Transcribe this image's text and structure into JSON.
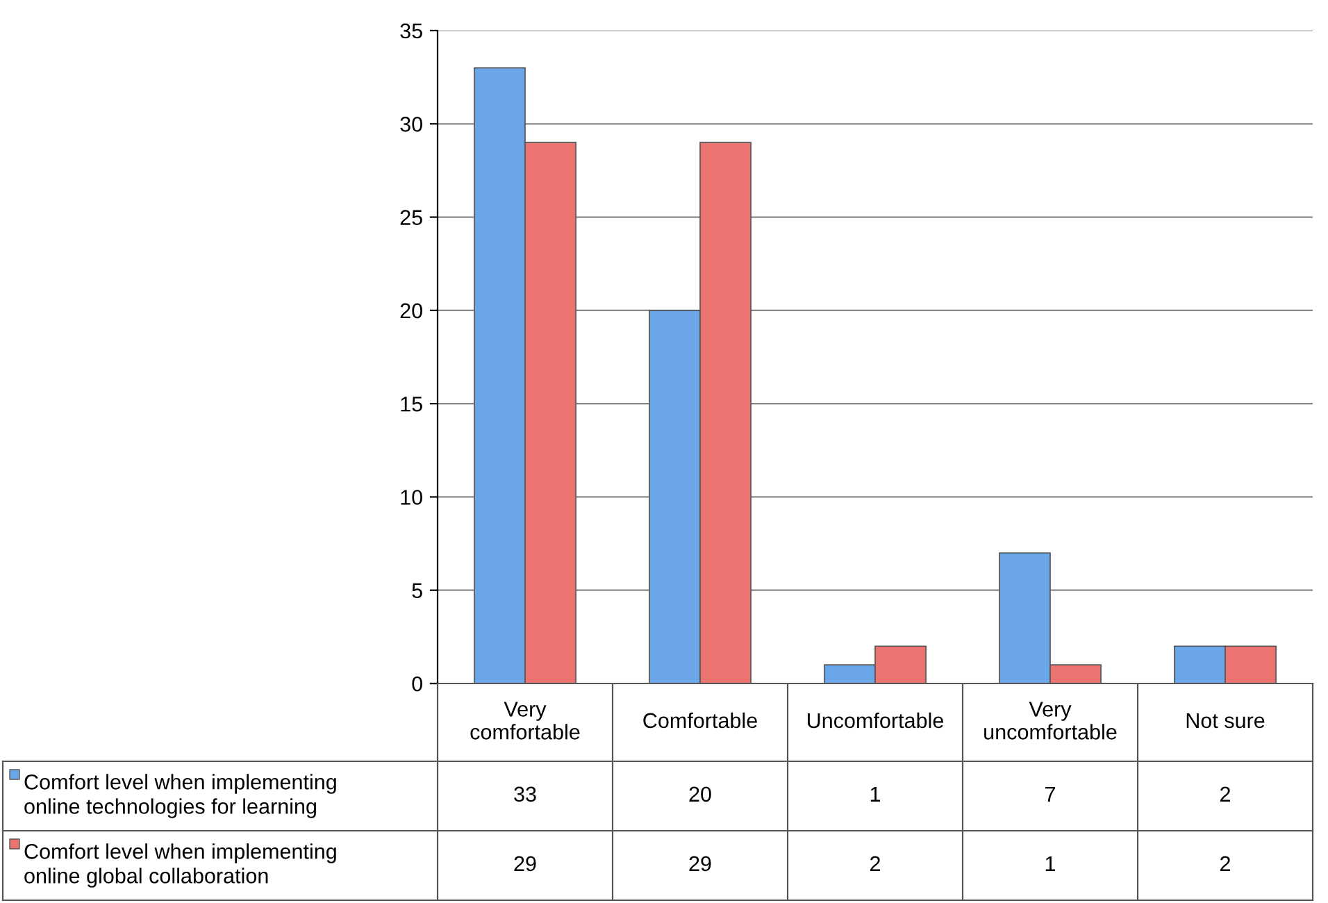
{
  "chart_data": {
    "type": "bar",
    "categories": [
      "Very\ncomfortable",
      "Comfortable",
      "Uncomfortable",
      "Very\nuncomfortable",
      "Not sure"
    ],
    "series": [
      {
        "name": "Comfort level when implementing\nonline technologies for learning",
        "color": "#6aa6e8",
        "values": [
          33,
          20,
          1,
          7,
          2
        ]
      },
      {
        "name": "Comfort level when implementing\nonline global collaboration",
        "color": "#ec7470",
        "values": [
          29,
          29,
          2,
          1,
          2
        ]
      }
    ],
    "ylim": [
      0,
      35
    ],
    "yticks": [
      0,
      5,
      10,
      15,
      20,
      25,
      30,
      35
    ],
    "grid": "y",
    "data_labels": true,
    "legend": "bottom"
  }
}
